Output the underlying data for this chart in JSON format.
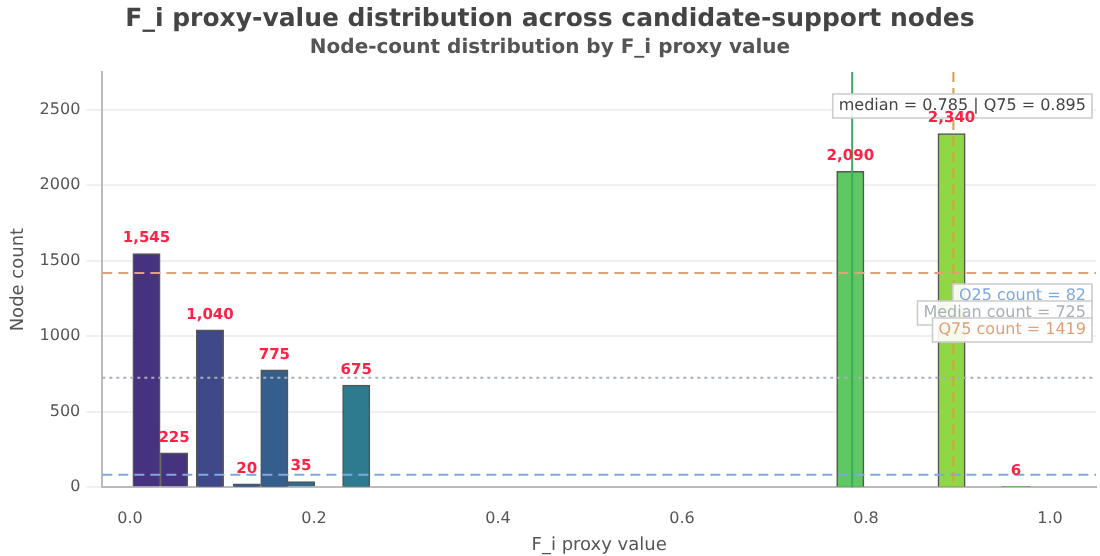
{
  "chart_data": {
    "type": "bar",
    "title": "F_i proxy-value distribution across candidate-support nodes",
    "subtitle": "Node-count distribution by F_i proxy value",
    "xlabel": "F_i proxy value",
    "ylabel": "Node count",
    "x": [
      0.018,
      0.048,
      0.087,
      0.127,
      0.157,
      0.186,
      0.246,
      0.783,
      0.893,
      0.963
    ],
    "values": [
      1545,
      225,
      1040,
      20,
      775,
      35,
      675,
      2090,
      2340,
      6
    ],
    "value_labels": [
      "1,545",
      "225",
      "1,040",
      "20",
      "775",
      "35",
      "675",
      "2,090",
      "2,340",
      "6"
    ],
    "colors": [
      "#46327e",
      "#46337f",
      "#3f4889",
      "#38588c",
      "#355e8d",
      "#2f6c8e",
      "#2e7a8e",
      "#5ec962",
      "#8fd744",
      "#86c77a"
    ],
    "xlim": [
      -0.03,
      1.05
    ],
    "xticks": [
      {
        "value": 0,
        "label": "0.0"
      },
      0.2,
      0.4,
      0.6,
      0.8,
      {
        "value": 1,
        "label": "1.0"
      }
    ],
    "ylim": [
      0,
      2750
    ],
    "yticks": [
      0,
      500,
      1000,
      1500,
      2000,
      2500
    ],
    "grid": "y",
    "legend": false,
    "ref_lines": [
      {
        "axis": "y",
        "value": 82,
        "label": "Q25 count = 82",
        "color": "#7ea8e0",
        "line_style": "dashed"
      },
      {
        "axis": "y",
        "value": 725,
        "label": "Median count = 725",
        "color": "#a8b0b8",
        "line_style": "dotted"
      },
      {
        "axis": "y",
        "value": 1419,
        "label": "Q75 count = 1419",
        "color": "#e0a078",
        "line_style": "dashed"
      },
      {
        "axis": "x",
        "value": 0.785,
        "color": "#3fa862",
        "line_style": "solid"
      },
      {
        "axis": "x",
        "value": 0.895,
        "color": "#d8a040",
        "line_style": "dashed"
      }
    ],
    "annotations": [
      "median = 0.785 | Q75 = 0.895"
    ]
  }
}
